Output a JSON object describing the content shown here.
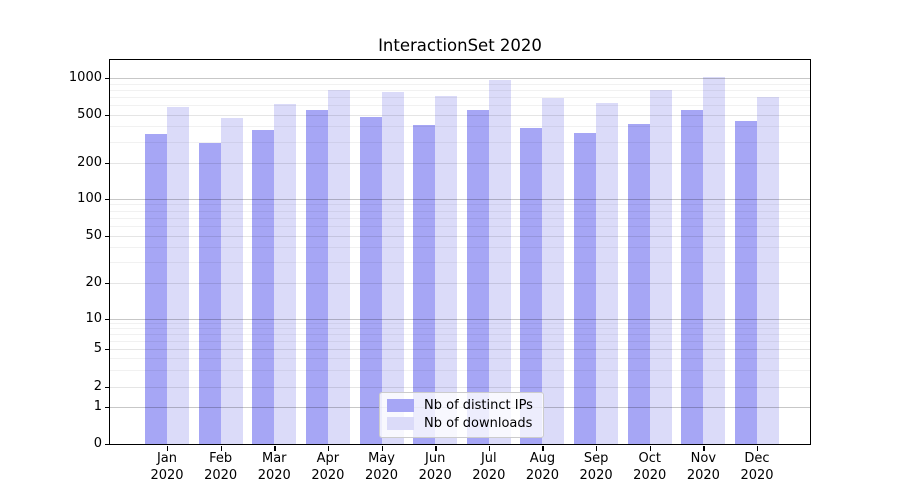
{
  "chart_data": {
    "type": "bar",
    "title": "InteractionSet 2020",
    "categories": [
      "Jan",
      "Feb",
      "Mar",
      "Apr",
      "May",
      "Jun",
      "Jul",
      "Aug",
      "Sep",
      "Oct",
      "Nov",
      "Dec"
    ],
    "category_year": "2020",
    "series": [
      {
        "name": "Nb of distinct IPs",
        "color": "#a6a6f5",
        "values": [
          345,
          290,
          370,
          540,
          475,
          410,
          540,
          390,
          350,
          415,
          540,
          440
        ]
      },
      {
        "name": "Nb of downloads",
        "color": "#dbdbf9",
        "values": [
          580,
          465,
          610,
          795,
          765,
          710,
          960,
          685,
          620,
          795,
          1020,
          700
        ]
      }
    ],
    "yscale": "symlog",
    "y_tick_values": [
      1000,
      500,
      200,
      100,
      50,
      20,
      10,
      5,
      2,
      1,
      0
    ],
    "ylim": [
      0,
      1400
    ],
    "xlabel": "",
    "ylabel": "",
    "grid": "both",
    "legend": {
      "position": "lower center",
      "entries": [
        "Nb of distinct IPs",
        "Nb of downloads"
      ]
    }
  }
}
